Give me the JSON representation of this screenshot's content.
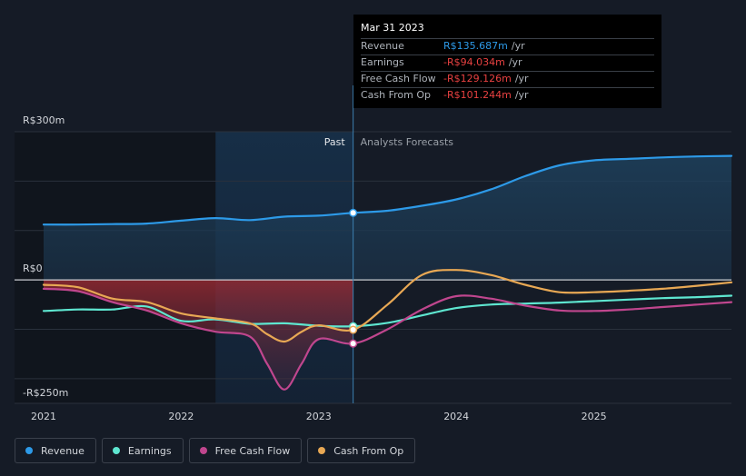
{
  "chart_data": {
    "type": "line",
    "title": "",
    "xlabel": "",
    "ylabel": "",
    "currency_prefix": "R$",
    "ylim": [
      -250,
      300
    ],
    "xlim": [
      2021.0,
      2026.0
    ],
    "y_tick_labels": [
      {
        "value": 300,
        "label": "R$300m"
      },
      {
        "value": 0,
        "label": "R$0"
      },
      {
        "value": -250,
        "label": "-R$250m"
      }
    ],
    "x_tick_labels": [
      {
        "value": 2021,
        "label": "2021"
      },
      {
        "value": 2022,
        "label": "2022"
      },
      {
        "value": 2023,
        "label": "2023"
      },
      {
        "value": 2024,
        "label": "2024"
      },
      {
        "value": 2025,
        "label": "2025"
      }
    ],
    "divider_x": 2023.25,
    "past_label": "Past",
    "forecast_label": "Analysts Forecasts",
    "grid": true,
    "legend_position": "bottom-left",
    "series": [
      {
        "name": "Revenue",
        "color": "#2d9ae8",
        "points": [
          [
            2021.0,
            112
          ],
          [
            2021.25,
            112
          ],
          [
            2021.5,
            113
          ],
          [
            2021.75,
            114
          ],
          [
            2022.0,
            120
          ],
          [
            2022.25,
            125
          ],
          [
            2022.5,
            121
          ],
          [
            2022.75,
            128
          ],
          [
            2023.0,
            130
          ],
          [
            2023.25,
            135.7
          ],
          [
            2023.5,
            140
          ],
          [
            2023.75,
            150
          ],
          [
            2024.0,
            163
          ],
          [
            2024.25,
            183
          ],
          [
            2024.5,
            210
          ],
          [
            2024.75,
            232
          ],
          [
            2025.0,
            242
          ],
          [
            2025.25,
            245
          ],
          [
            2025.5,
            248
          ],
          [
            2025.75,
            250
          ],
          [
            2026.0,
            251
          ]
        ]
      },
      {
        "name": "Earnings",
        "color": "#5ee6d0",
        "points": [
          [
            2021.0,
            -63
          ],
          [
            2021.25,
            -60
          ],
          [
            2021.5,
            -60
          ],
          [
            2021.75,
            -54
          ],
          [
            2022.0,
            -83
          ],
          [
            2022.25,
            -80
          ],
          [
            2022.5,
            -89
          ],
          [
            2022.75,
            -88
          ],
          [
            2023.0,
            -93
          ],
          [
            2023.25,
            -94
          ],
          [
            2023.5,
            -87
          ],
          [
            2023.75,
            -72
          ],
          [
            2024.0,
            -57
          ],
          [
            2024.25,
            -50
          ],
          [
            2024.5,
            -48
          ],
          [
            2024.75,
            -46
          ],
          [
            2025.0,
            -43
          ],
          [
            2025.25,
            -40
          ],
          [
            2025.5,
            -37
          ],
          [
            2025.75,
            -35
          ],
          [
            2026.0,
            -32
          ]
        ]
      },
      {
        "name": "Free Cash Flow",
        "color": "#c0468e",
        "points": [
          [
            2021.0,
            -18
          ],
          [
            2021.25,
            -23
          ],
          [
            2021.5,
            -45
          ],
          [
            2021.75,
            -62
          ],
          [
            2022.0,
            -88
          ],
          [
            2022.25,
            -105
          ],
          [
            2022.5,
            -115
          ],
          [
            2022.625,
            -170
          ],
          [
            2022.75,
            -222
          ],
          [
            2022.875,
            -170
          ],
          [
            2023.0,
            -120
          ],
          [
            2023.25,
            -129
          ],
          [
            2023.5,
            -100
          ],
          [
            2023.75,
            -60
          ],
          [
            2024.0,
            -33
          ],
          [
            2024.25,
            -38
          ],
          [
            2024.5,
            -52
          ],
          [
            2024.75,
            -62
          ],
          [
            2025.0,
            -63
          ],
          [
            2025.25,
            -60
          ],
          [
            2025.5,
            -55
          ],
          [
            2025.75,
            -50
          ],
          [
            2026.0,
            -45
          ]
        ]
      },
      {
        "name": "Cash From Op",
        "color": "#e8a854",
        "points": [
          [
            2021.0,
            -10
          ],
          [
            2021.25,
            -15
          ],
          [
            2021.5,
            -38
          ],
          [
            2021.75,
            -45
          ],
          [
            2022.0,
            -68
          ],
          [
            2022.25,
            -78
          ],
          [
            2022.5,
            -88
          ],
          [
            2022.625,
            -110
          ],
          [
            2022.75,
            -125
          ],
          [
            2022.875,
            -105
          ],
          [
            2023.0,
            -92
          ],
          [
            2023.25,
            -101
          ],
          [
            2023.5,
            -50
          ],
          [
            2023.75,
            10
          ],
          [
            2024.0,
            20
          ],
          [
            2024.25,
            10
          ],
          [
            2024.5,
            -10
          ],
          [
            2024.75,
            -25
          ],
          [
            2025.0,
            -25
          ],
          [
            2025.25,
            -22
          ],
          [
            2025.5,
            -18
          ],
          [
            2025.75,
            -12
          ],
          [
            2026.0,
            -5
          ]
        ]
      }
    ]
  },
  "tooltip": {
    "date": "Mar 31 2023",
    "rows": [
      {
        "label": "Revenue",
        "value": "R$135.687m",
        "unit": "/yr",
        "color": "#2d9ae8"
      },
      {
        "label": "Earnings",
        "value": "-R$94.034m",
        "unit": "/yr",
        "color": "#e84141"
      },
      {
        "label": "Free Cash Flow",
        "value": "-R$129.126m",
        "unit": "/yr",
        "color": "#e84141"
      },
      {
        "label": "Cash From Op",
        "value": "-R$101.244m",
        "unit": "/yr",
        "color": "#e84141"
      }
    ]
  },
  "legend": [
    {
      "label": "Revenue",
      "color": "#2d9ae8"
    },
    {
      "label": "Earnings",
      "color": "#5ee6d0"
    },
    {
      "label": "Free Cash Flow",
      "color": "#c0468e"
    },
    {
      "label": "Cash From Op",
      "color": "#e8a854"
    }
  ]
}
